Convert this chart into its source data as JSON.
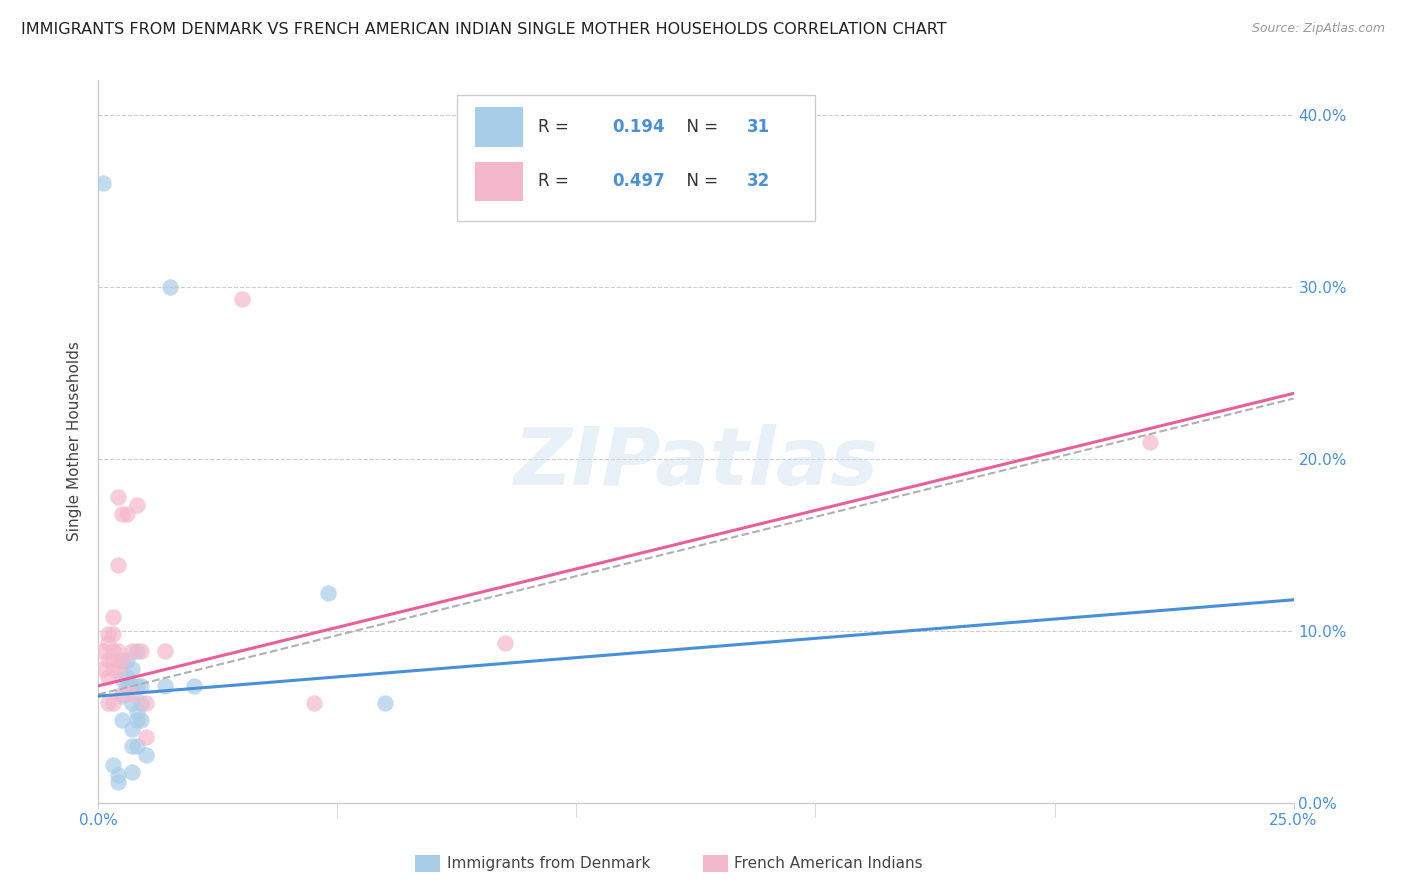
{
  "title": "IMMIGRANTS FROM DENMARK VS FRENCH AMERICAN INDIAN SINGLE MOTHER HOUSEHOLDS CORRELATION CHART",
  "source": "Source: ZipAtlas.com",
  "ylabel": "Single Mother Households",
  "xlabel_blue": "Immigrants from Denmark",
  "xlabel_pink": "French American Indians",
  "watermark": "ZIPatlas",
  "legend_blue_R": "0.194",
  "legend_blue_N": "31",
  "legend_pink_R": "0.497",
  "legend_pink_N": "32",
  "xlim": [
    0.0,
    0.25
  ],
  "ylim": [
    0.0,
    0.42
  ],
  "yticks": [
    0.0,
    0.1,
    0.2,
    0.3,
    0.4
  ],
  "xtick_labels_show": [
    "0.0%",
    "25.0%"
  ],
  "xtick_labels_pos": [
    0.0,
    0.25
  ],
  "blue_color": "#a8cde8",
  "pink_color": "#f4b8cc",
  "blue_line_color": "#4a90d9",
  "pink_line_color": "#e8609a",
  "dashed_line_color": "#b0b0b0",
  "right_tick_color": "#4a90d9",
  "blue_scatter": [
    [
      0.001,
      0.36
    ],
    [
      0.003,
      0.022
    ],
    [
      0.004,
      0.016
    ],
    [
      0.004,
      0.012
    ],
    [
      0.005,
      0.082
    ],
    [
      0.005,
      0.072
    ],
    [
      0.005,
      0.062
    ],
    [
      0.005,
      0.048
    ],
    [
      0.006,
      0.083
    ],
    [
      0.006,
      0.073
    ],
    [
      0.006,
      0.068
    ],
    [
      0.007,
      0.078
    ],
    [
      0.007,
      0.068
    ],
    [
      0.007,
      0.058
    ],
    [
      0.007,
      0.043
    ],
    [
      0.007,
      0.033
    ],
    [
      0.007,
      0.018
    ],
    [
      0.008,
      0.088
    ],
    [
      0.008,
      0.068
    ],
    [
      0.008,
      0.053
    ],
    [
      0.008,
      0.048
    ],
    [
      0.008,
      0.033
    ],
    [
      0.009,
      0.068
    ],
    [
      0.009,
      0.058
    ],
    [
      0.009,
      0.048
    ],
    [
      0.01,
      0.028
    ],
    [
      0.014,
      0.068
    ],
    [
      0.015,
      0.3
    ],
    [
      0.02,
      0.068
    ],
    [
      0.048,
      0.122
    ],
    [
      0.06,
      0.058
    ]
  ],
  "pink_scatter": [
    [
      0.001,
      0.088
    ],
    [
      0.001,
      0.078
    ],
    [
      0.002,
      0.098
    ],
    [
      0.002,
      0.093
    ],
    [
      0.002,
      0.083
    ],
    [
      0.002,
      0.073
    ],
    [
      0.002,
      0.058
    ],
    [
      0.003,
      0.108
    ],
    [
      0.003,
      0.098
    ],
    [
      0.003,
      0.088
    ],
    [
      0.003,
      0.083
    ],
    [
      0.003,
      0.078
    ],
    [
      0.003,
      0.058
    ],
    [
      0.004,
      0.178
    ],
    [
      0.004,
      0.138
    ],
    [
      0.004,
      0.088
    ],
    [
      0.004,
      0.078
    ],
    [
      0.005,
      0.168
    ],
    [
      0.005,
      0.083
    ],
    [
      0.005,
      0.063
    ],
    [
      0.006,
      0.168
    ],
    [
      0.007,
      0.088
    ],
    [
      0.007,
      0.063
    ],
    [
      0.008,
      0.173
    ],
    [
      0.009,
      0.088
    ],
    [
      0.01,
      0.058
    ],
    [
      0.01,
      0.038
    ],
    [
      0.014,
      0.088
    ],
    [
      0.03,
      0.293
    ],
    [
      0.045,
      0.058
    ],
    [
      0.085,
      0.093
    ],
    [
      0.22,
      0.21
    ]
  ],
  "blue_line_x": [
    0.0,
    0.25
  ],
  "blue_line_y": [
    0.062,
    0.118
  ],
  "pink_line_x": [
    0.0,
    0.25
  ],
  "pink_line_y": [
    0.068,
    0.238
  ],
  "dashed_line_x": [
    0.0,
    0.25
  ],
  "dashed_line_y": [
    0.063,
    0.235
  ]
}
